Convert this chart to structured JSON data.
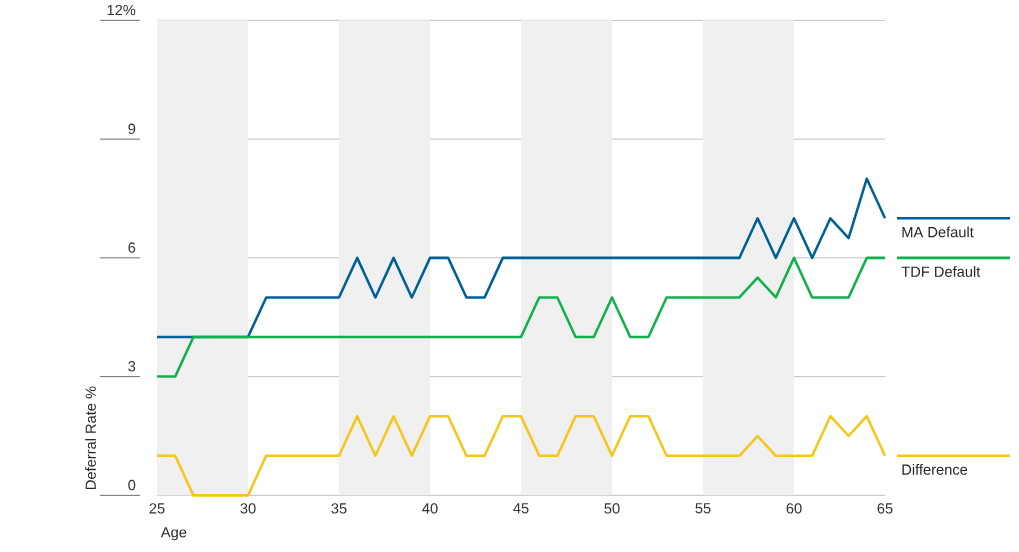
{
  "chart_data": {
    "type": "line",
    "xlabel": "Age",
    "ylabel": "Deferral Rate %",
    "x": [
      25,
      26,
      27,
      28,
      29,
      30,
      31,
      32,
      33,
      34,
      35,
      36,
      37,
      38,
      39,
      40,
      41,
      42,
      43,
      44,
      45,
      46,
      47,
      48,
      49,
      50,
      51,
      52,
      53,
      54,
      55,
      56,
      57,
      58,
      59,
      60,
      61,
      62,
      63,
      64,
      65
    ],
    "series": [
      {
        "name": "MA Default",
        "color": "#005f96",
        "values": [
          4,
          4,
          4,
          4,
          4,
          4,
          5,
          5,
          5,
          5,
          5,
          6,
          5,
          6,
          5,
          6,
          6,
          5,
          5,
          6,
          6,
          6,
          6,
          6,
          6,
          6,
          6,
          6,
          6,
          6,
          6,
          6,
          6,
          7,
          6,
          7,
          6,
          7,
          6.5,
          8,
          7
        ]
      },
      {
        "name": "TDF Default",
        "color": "#12b04b",
        "values": [
          3,
          3,
          4,
          4,
          4,
          4,
          4,
          4,
          4,
          4,
          4,
          4,
          4,
          4,
          4,
          4,
          4,
          4,
          4,
          4,
          4,
          5,
          5,
          4,
          4,
          5,
          4,
          4,
          5,
          5,
          5,
          5,
          5,
          5.5,
          5,
          6,
          5,
          5,
          5,
          6,
          6
        ]
      },
      {
        "name": "Difference",
        "color": "#f5c518",
        "values": [
          1,
          1,
          0,
          0,
          0,
          0,
          1,
          1,
          1,
          1,
          1,
          2,
          1,
          2,
          1,
          2,
          2,
          1,
          1,
          2,
          2,
          1,
          1,
          2,
          2,
          1,
          2,
          2,
          1,
          1,
          1,
          1,
          1,
          1.5,
          1,
          1,
          1,
          2,
          1.5,
          2,
          1
        ]
      }
    ],
    "xlim": [
      25,
      65
    ],
    "xticks": [
      25,
      30,
      35,
      40,
      45,
      50,
      55,
      60,
      65
    ],
    "ylim": [
      0,
      12
    ],
    "yticks": [
      0,
      3,
      6,
      9,
      {
        "value": 12,
        "label": "12%"
      }
    ],
    "grid": "y",
    "legend": "right",
    "line_style": "solid",
    "bands": [
      {
        "axis": "x",
        "from": 25,
        "to": 30,
        "color": "#f0f0f0"
      },
      {
        "axis": "x",
        "from": 35,
        "to": 40,
        "color": "#f0f0f0"
      },
      {
        "axis": "x",
        "from": 45,
        "to": 50,
        "color": "#f0f0f0"
      },
      {
        "axis": "x",
        "from": 55,
        "to": 60,
        "color": "#f0f0f0"
      }
    ]
  }
}
